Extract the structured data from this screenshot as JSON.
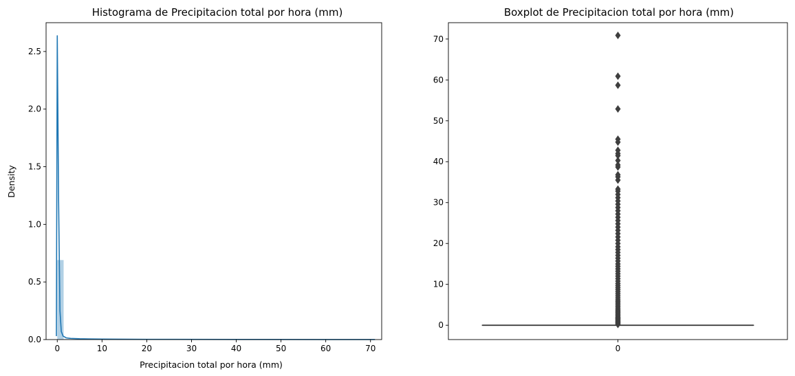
{
  "chart_data": [
    {
      "type": "bar",
      "title": "Histograma de Precipitacion total por hora (mm)",
      "xlabel": "Precipitacion total por hora (mm)",
      "ylabel": "Density",
      "xlim": [
        -2.5,
        72.5
      ],
      "ylim": [
        0,
        2.75
      ],
      "xticks": [
        0,
        10,
        20,
        30,
        40,
        50,
        60,
        70
      ],
      "yticks": [
        0.0,
        0.5,
        1.0,
        1.5,
        2.0,
        2.5
      ],
      "ytick_labels": [
        "0.0",
        "0.5",
        "1.0",
        "1.5",
        "2.0",
        "2.5"
      ],
      "bins": [
        {
          "x0": 0.0,
          "x1": 1.42,
          "density": 0.69
        },
        {
          "x0": 1.42,
          "x1": 2.84,
          "density": 0.004
        }
      ],
      "bar_color": "#1f77b4",
      "kde": {
        "color": "#1f77b4",
        "x": [
          -0.2,
          0.0,
          0.3,
          0.6,
          0.9,
          1.3,
          2.0,
          3.0,
          5.0,
          10.0,
          20.0,
          40.0,
          60.0,
          71.0
        ],
        "y": [
          0.03,
          2.64,
          1.2,
          0.25,
          0.07,
          0.03,
          0.015,
          0.01,
          0.007,
          0.004,
          0.002,
          0.001,
          0.0005,
          0.0003
        ]
      }
    },
    {
      "type": "box",
      "title": "Boxplot de Precipitacion total por hora (mm)",
      "xlabel": "",
      "ylabel": "",
      "categories": [
        "0"
      ],
      "ylim": [
        -3.5,
        74
      ],
      "yticks": [
        0,
        10,
        20,
        30,
        40,
        50,
        60,
        70
      ],
      "box": {
        "q1": 0,
        "median": 0,
        "q3": 0,
        "whisker_low": 0,
        "whisker_high": 0
      },
      "line_color": "#3f3f3f",
      "outliers": [
        0.2,
        0.4,
        0.6,
        0.8,
        1.0,
        1.2,
        1.4,
        1.6,
        1.8,
        2.0,
        2.3,
        2.6,
        2.9,
        3.2,
        3.5,
        3.8,
        4.2,
        4.6,
        5.0,
        5.4,
        5.8,
        6.2,
        6.7,
        7.2,
        7.7,
        8.2,
        8.7,
        9.2,
        9.7,
        10.2,
        10.8,
        11.4,
        12.0,
        12.6,
        13.2,
        13.8,
        14.4,
        15.0,
        15.7,
        16.4,
        17.1,
        17.8,
        18.5,
        19.2,
        20.0,
        20.8,
        21.6,
        22.4,
        23.2,
        24.0,
        24.8,
        25.6,
        26.4,
        27.2,
        28.0,
        28.8,
        29.6,
        30.4,
        31.2,
        32.0,
        32.8,
        33.3,
        35.5,
        36.3,
        36.8,
        38.7,
        39.2,
        40.3,
        41.5,
        42.0,
        42.8,
        44.8,
        45.5,
        52.9,
        58.7,
        60.9,
        70.9
      ]
    }
  ]
}
